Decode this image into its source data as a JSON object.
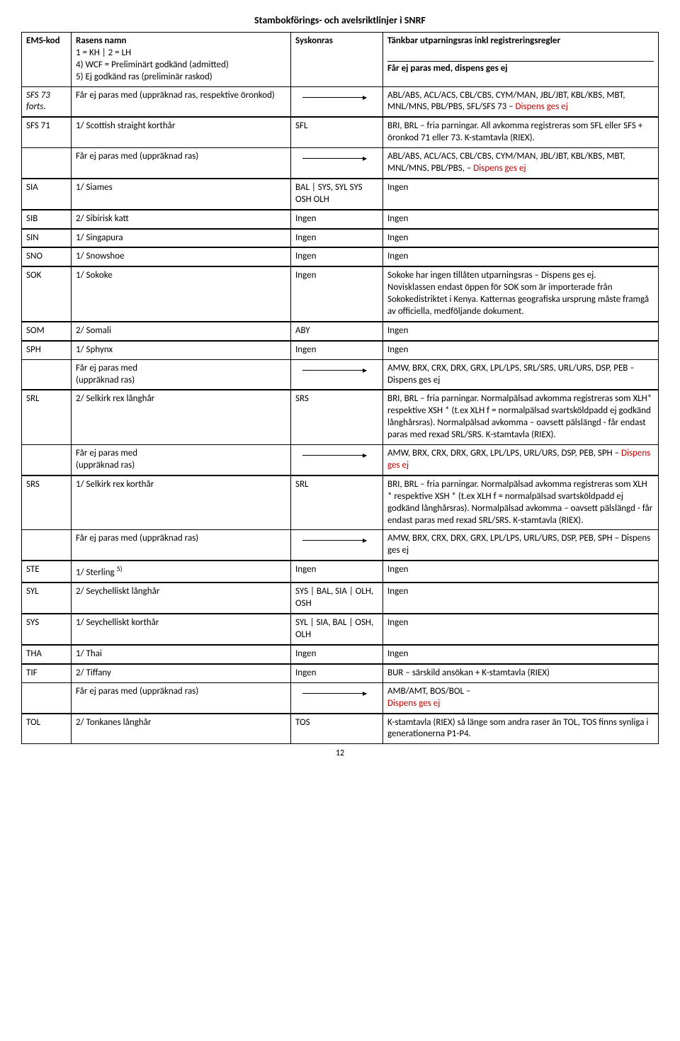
{
  "doc_title": "Stambokförings- och avelsriktlinjer i SNRF",
  "page_number": "12",
  "header": {
    "col1": "EMS-kod",
    "col2_title": "Rasens namn",
    "col2_line2": "1 = KH | 2 = LH",
    "col2_line3": "4) WCF = Preliminärt godkänd (admitted)",
    "col2_line4": "5) Ej godkänd ras (preliminär raskod)",
    "col3": "Syskonras",
    "col4_line1": "Tänkbar utparningsras inkl registreringsregler",
    "col4_line2": "Får ej paras med, dispens ges ej"
  },
  "rows": [
    {
      "c1": "SFS 73 forts.",
      "c1_italic": true,
      "c2": "Får ej paras med (uppräknad ras, respektive öronkod)",
      "c3_arrow": true,
      "c4": "ABL/ABS, ACL/ACS, CBL/CBS, CYM/MAN, JBL/JBT, KBL/KBS, MBT, MNL/MNS, PBL/PBS, SFL/SFS 73 – <span class='red'>Dispens ges ej</span>"
    },
    {
      "c1": "SFS 71",
      "c2": "1/ Scottish straight korthår",
      "c3": "SFL",
      "c4": "BRI, BRL – fria parningar. All avkomma registreras som SFL eller SFS + öronkod 71 eller 73. K-stamtavla (RIEX).",
      "sep": true
    },
    {
      "c1": "",
      "c2": "Får ej paras med (uppräknad ras)",
      "c3_arrow": true,
      "c4": "ABL/ABS, ACL/ACS, CBL/CBS, CYM/MAN, JBL/JBT, KBL/KBS, MBT, MNL/MNS, PBL/PBS, – <span class='red'>Dispens ges ej</span>"
    },
    {
      "c1": "SIA",
      "c2": "1/ Siames",
      "c3": "BAL | SYS, SYL SYS OSH OLH",
      "c4": "Ingen",
      "sep": true
    },
    {
      "c1": "SIB",
      "c2": "2/ Sibirisk katt",
      "c3": "Ingen",
      "c4": "Ingen",
      "sep": true
    },
    {
      "c1": "SIN",
      "c2": "1/ Singapura",
      "c3": "Ingen",
      "c4": "Ingen",
      "sep": true
    },
    {
      "c1": "SNO",
      "c2": "1/ Snowshoe",
      "c3": "Ingen",
      "c4": "Ingen",
      "sep": true
    },
    {
      "c1": "SOK",
      "c2": "1/ Sokoke",
      "c3": "Ingen",
      "c4": "Sokoke har ingen tillåten utparningsras – Dispens ges ej.<br>Novisklassen endast öppen för SOK som är importerade från Sokokedistriktet i Kenya. Katternas geografiska ursprung måste framgå av officiella, medföljande dokument.",
      "sep": true
    },
    {
      "c1": "SOM",
      "c2": "2/ Somali",
      "c3": "ABY",
      "c4": "Ingen",
      "sep": true
    },
    {
      "c1": "SPH",
      "c2": "1/ Sphynx",
      "c3": "Ingen",
      "c4": "Ingen",
      "sep": true
    },
    {
      "c1": "",
      "c2": "Får ej paras med<br>(uppräknad ras)",
      "c3_arrow": true,
      "c4": "AMW, BRX, CRX, DRX, GRX, LPL/LPS, SRL/SRS, URL/URS, DSP, PEB – Dispens ges ej"
    },
    {
      "c1": "SRL",
      "c2": "2/ Selkirk rex långhår",
      "c3": "SRS",
      "c4": "BRI, BRL – fria parningar. Normalpälsad avkomma registreras som XLH* respektive XSH * (t.ex XLH f = normalpälsad svartsköldpadd ej godkänd långhårsras). Normalpälsad avkomma – oavsett pälslängd - får endast paras med rexad SRL/SRS. K-stamtavla (RIEX).",
      "sep": true
    },
    {
      "c1": "",
      "c2": "Får ej paras med<br>(uppräknad ras)",
      "c3_arrow": true,
      "c4": "AMW, BRX, CRX, DRX, GRX, LPL/LPS, URL/URS, DSP, PEB, SPH – <span class='red'>Dispens ges ej</span>"
    },
    {
      "c1": "SRS",
      "c2": "1/ Selkirk rex korthår",
      "c3": "SRL",
      "c4": "BRI, BRL – fria parningar. Normalpälsad avkomma registreras som XLH * respektive XSH * (t.ex XLH f = normalpälsad svartsköldpadd ej godkänd långhårsras). Normalpälsad avkomma – oavsett pälslängd - får endast paras med rexad SRL/SRS. K-stamtavla (RIEX).",
      "sep": true
    },
    {
      "c1": "",
      "c2": "Får ej paras med (uppräknad ras)",
      "c3_arrow": true,
      "c4": "AMW, BRX, CRX, DRX, GRX, LPL/LPS,  URL/URS, DSP, PEB, SPH – Dispens ges ej"
    },
    {
      "c1": "STE",
      "c2": "1/ Sterling <span class='sup'>5)</span>",
      "c3": "Ingen",
      "c4": "Ingen",
      "sep": true
    },
    {
      "c1": "SYL",
      "c2": "2/ Seychelliskt långhår",
      "c3": "SYS | BAL, SIA | OLH, OSH",
      "c4": "Ingen",
      "sep": true
    },
    {
      "c1": "SYS",
      "c2": "1/ Seychelliskt korthår",
      "c3": "SYL | SIA, BAL | OSH, OLH",
      "c4": "Ingen",
      "sep": true
    },
    {
      "c1": "THA",
      "c2": "1/ Thai",
      "c3": "Ingen",
      "c4": "Ingen",
      "sep": true
    },
    {
      "c1": "TIF",
      "c2": "2/ Tiffany",
      "c3": "Ingen",
      "c4": "BUR – särskild ansökan + K-stamtavla (RIEX)",
      "sep": true
    },
    {
      "c1": "",
      "c2": "Får ej paras med (uppräknad ras)",
      "c3_arrow": true,
      "c4": "AMB/AMT, BOS/BOL – <br><span class='red'>Dispens ges ej</span>"
    },
    {
      "c1": "TOL",
      "c2": "2/ Tonkanes långhår",
      "c3": "TOS",
      "c4": "K-stamtavla (RIEX) så länge som andra raser än TOL, TOS finns synliga i generationerna P1-P4.",
      "sep": true
    }
  ]
}
